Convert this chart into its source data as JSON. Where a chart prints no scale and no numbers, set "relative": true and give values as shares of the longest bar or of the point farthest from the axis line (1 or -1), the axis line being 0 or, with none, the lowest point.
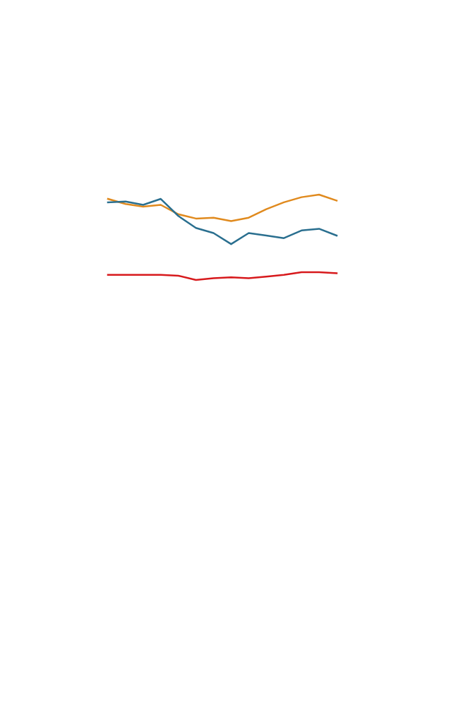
{
  "chart_data": {
    "type": "line",
    "relative": true,
    "grid": false,
    "marker": "none",
    "line_style": "solid",
    "categories": [
      null,
      null,
      null,
      null,
      null,
      null,
      null,
      null,
      null,
      null,
      null,
      null,
      null,
      null
    ],
    "series": [
      {
        "color": "#e08a1e",
        "values": [
          0.95,
          0.89,
          0.86,
          0.88,
          0.77,
          0.72,
          0.73,
          0.69,
          0.73,
          0.83,
          0.91,
          0.97,
          1.0,
          0.93
        ]
      },
      {
        "color": "#2a6f8f",
        "values": [
          0.91,
          0.92,
          0.88,
          0.95,
          0.75,
          0.61,
          0.55,
          0.42,
          0.55,
          0.52,
          0.49,
          0.58,
          0.6,
          0.52
        ]
      },
      {
        "color": "#d7191c",
        "values": [
          0.06,
          0.06,
          0.06,
          0.06,
          0.05,
          0.0,
          0.02,
          0.03,
          0.02,
          0.04,
          0.06,
          0.09,
          0.09,
          0.08
        ]
      }
    ]
  }
}
